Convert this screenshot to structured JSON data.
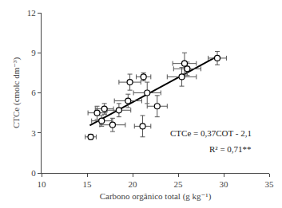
{
  "chart_data": {
    "type": "scatter",
    "x_label": "Carbono orgânico total (g kg⁻¹)",
    "y_label": "CTCe (cmolc dm⁻³)",
    "xlim": [
      10,
      35
    ],
    "xticks": [
      10,
      15,
      20,
      25,
      30,
      35
    ],
    "ylim": [
      0,
      12
    ],
    "yticks": [
      0,
      3,
      6,
      9,
      12
    ],
    "grid": false,
    "annotations": [
      "CTCe = 0,37COT - 2,1",
      "R² = 0,71**"
    ],
    "series": [
      {
        "type": "scatter",
        "marker": "open circle",
        "color": "#000000",
        "x": [
          15.4,
          16.1,
          16.6,
          16.9,
          17.8,
          18.5,
          19.5,
          19.7,
          21.2,
          21.6,
          21.1,
          22.7,
          25.4,
          25.7,
          26.0,
          29.3
        ],
        "values": [
          2.7,
          4.5,
          3.9,
          4.8,
          3.6,
          4.7,
          5.4,
          6.8,
          7.2,
          6.0,
          3.5,
          5.0,
          7.2,
          8.2,
          7.8,
          8.6
        ],
        "x_error": [
          0.6,
          1.0,
          1.1,
          1.0,
          1.4,
          1.3,
          1.5,
          1.2,
          0.8,
          1.5,
          0.9,
          1.1,
          1.6,
          1.3,
          1.5,
          1.0
        ],
        "y_error": [
          0.2,
          0.5,
          0.4,
          0.4,
          0.5,
          0.5,
          0.5,
          0.6,
          0.3,
          0.8,
          0.8,
          0.8,
          0.7,
          0.8,
          0.5,
          0.5
        ]
      },
      {
        "type": "line",
        "color": "#000000",
        "line_style": "solid",
        "x": [
          15.3,
          29.3
        ],
        "values": [
          3.56,
          8.74
        ]
      }
    ]
  }
}
